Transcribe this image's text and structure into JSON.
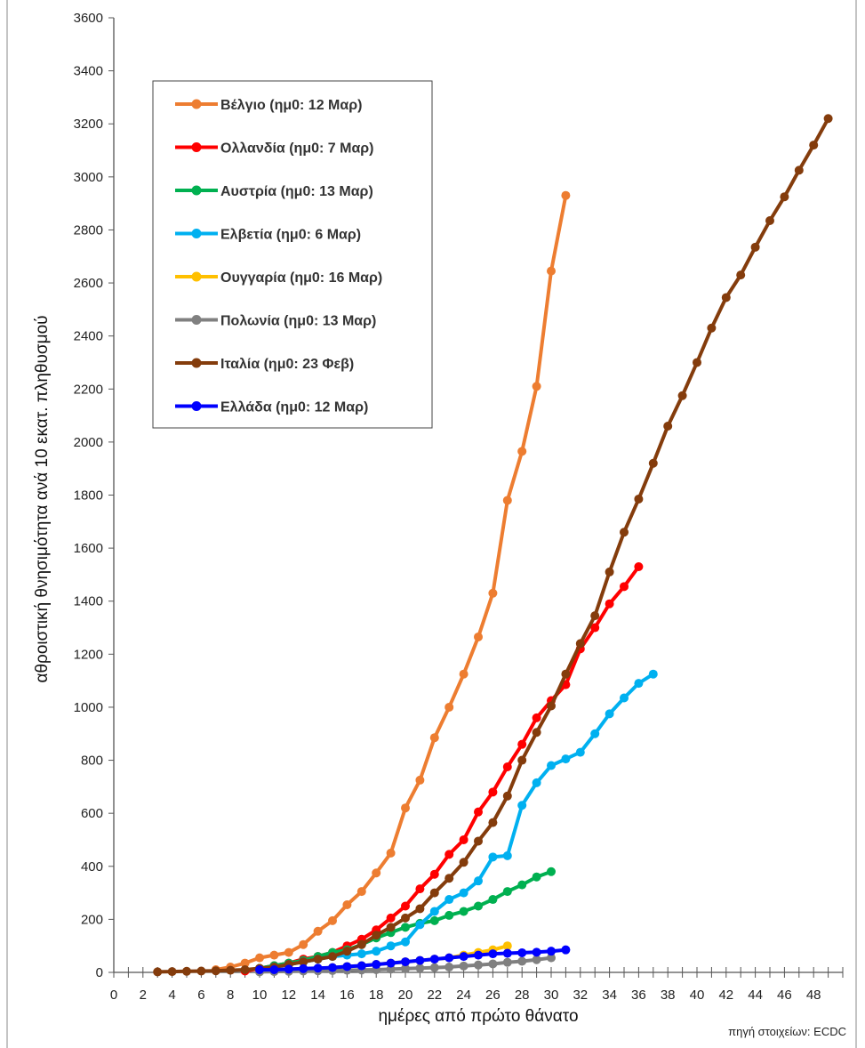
{
  "chart_data": {
    "type": "line",
    "xlabel": "ημέρες από πρώτο θάνατο",
    "ylabel": "αθροιστική θνησιμότητα ανά 10 εκατ. πληθυσμού",
    "source_note": "πηγή στοιχείων: ECDC",
    "xlim": [
      0,
      50
    ],
    "ylim": [
      0,
      3600
    ],
    "x_tick_labels": [
      "0",
      "2",
      "4",
      "6",
      "8",
      "10",
      "12",
      "14",
      "16",
      "18",
      "20",
      "22",
      "24",
      "26",
      "28",
      "30",
      "32",
      "34",
      "36",
      "38",
      "40",
      "42",
      "44",
      "46",
      "48"
    ],
    "y_tick_labels": [
      "0",
      "200",
      "400",
      "600",
      "800",
      "1000",
      "1200",
      "1400",
      "1600",
      "1800",
      "2000",
      "2200",
      "2400",
      "2600",
      "2800",
      "3000",
      "3200",
      "3400",
      "3600"
    ],
    "grid": false,
    "legend_position": "top-left",
    "series": [
      {
        "name": "Βέλγιο (ημ0: 12 Μαρ)",
        "color": "#ED7D31",
        "x": [
          7,
          8,
          9,
          10,
          11,
          12,
          13,
          14,
          15,
          16,
          17,
          18,
          19,
          20,
          21,
          22,
          23,
          24,
          25,
          26,
          27,
          28,
          29,
          30,
          31
        ],
        "y": [
          10,
          20,
          35,
          55,
          65,
          75,
          105,
          155,
          195,
          255,
          305,
          375,
          450,
          620,
          725,
          885,
          1000,
          1125,
          1265,
          1430,
          1780,
          1965,
          2210,
          2645,
          2930
        ]
      },
      {
        "name": "Ολλανδία (ημ0: 7 Μαρ)",
        "color": "#FF0000",
        "x": [
          9,
          10,
          11,
          12,
          13,
          14,
          15,
          16,
          17,
          18,
          19,
          20,
          21,
          22,
          23,
          24,
          25,
          26,
          27,
          28,
          29,
          30,
          31,
          32,
          33,
          34,
          35,
          36
        ],
        "y": [
          5,
          15,
          25,
          35,
          50,
          60,
          75,
          100,
          125,
          160,
          205,
          250,
          315,
          370,
          445,
          500,
          605,
          680,
          775,
          860,
          960,
          1025,
          1085,
          1220,
          1300,
          1390,
          1455,
          1530
        ]
      },
      {
        "name": "Αυστρία (ημ0: 13 Μαρ)",
        "color": "#00B050",
        "x": [
          10,
          11,
          12,
          13,
          14,
          15,
          16,
          17,
          18,
          19,
          20,
          21,
          22,
          23,
          24,
          25,
          26,
          27,
          28,
          29,
          30
        ],
        "y": [
          15,
          25,
          35,
          45,
          60,
          75,
          85,
          105,
          130,
          150,
          170,
          185,
          195,
          215,
          230,
          250,
          275,
          305,
          330,
          360,
          380
        ]
      },
      {
        "name": "Ελβετία (ημ0: 6 Μαρ)",
        "color": "#00B0F0",
        "x": [
          10,
          11,
          12,
          13,
          14,
          15,
          16,
          17,
          18,
          19,
          20,
          21,
          22,
          23,
          24,
          25,
          26,
          27,
          28,
          29,
          30,
          31,
          32,
          33,
          34,
          35,
          36,
          37
        ],
        "y": [
          10,
          20,
          30,
          40,
          50,
          60,
          65,
          70,
          80,
          100,
          115,
          180,
          230,
          275,
          300,
          345,
          435,
          440,
          630,
          715,
          780,
          805,
          830,
          900,
          975,
          1035,
          1090,
          1125
        ]
      },
      {
        "name": "Ουγγαρία (ημ0: 16 Μαρ)",
        "color": "#FFC000",
        "x": [
          10,
          11,
          12,
          13,
          14,
          15,
          16,
          17,
          18,
          19,
          20,
          21,
          22,
          23,
          24,
          25,
          26,
          27
        ],
        "y": [
          5,
          8,
          10,
          12,
          15,
          18,
          22,
          25,
          30,
          35,
          40,
          45,
          50,
          55,
          65,
          75,
          85,
          100
        ]
      },
      {
        "name": "Πολωνία (ημ0: 13 Μαρ)",
        "color": "#808080",
        "x": [
          10,
          11,
          12,
          13,
          14,
          15,
          16,
          17,
          18,
          19,
          20,
          21,
          22,
          23,
          24,
          25,
          26,
          27,
          28,
          29,
          30
        ],
        "y": [
          2,
          3,
          4,
          5,
          6,
          7,
          8,
          9,
          10,
          12,
          14,
          16,
          18,
          20,
          24,
          28,
          32,
          38,
          42,
          48,
          55
        ]
      },
      {
        "name": "Ιταλία (ημ0: 23 Φεβ)",
        "color": "#843C0C",
        "x": [
          3,
          4,
          5,
          6,
          7,
          8,
          9,
          10,
          11,
          12,
          13,
          14,
          15,
          16,
          17,
          18,
          19,
          20,
          21,
          22,
          23,
          24,
          25,
          26,
          27,
          28,
          29,
          30,
          31,
          32,
          33,
          34,
          35,
          36,
          37,
          38,
          39,
          40,
          41,
          42,
          43,
          44,
          45,
          46,
          47,
          48,
          49
        ],
        "y": [
          2,
          3,
          4,
          5,
          6,
          8,
          10,
          15,
          20,
          30,
          40,
          50,
          60,
          80,
          105,
          140,
          170,
          205,
          240,
          300,
          355,
          415,
          495,
          565,
          665,
          800,
          905,
          1005,
          1125,
          1240,
          1345,
          1510,
          1660,
          1785,
          1920,
          2060,
          2175,
          2300,
          2430,
          2545,
          2630,
          2735,
          2835,
          2925,
          3025,
          3120,
          3220
        ]
      },
      {
        "name": "Ελλάδα (ημ0: 12 Μαρ)",
        "color": "#0000FF",
        "x": [
          10,
          11,
          12,
          13,
          14,
          15,
          16,
          17,
          18,
          19,
          20,
          21,
          22,
          23,
          24,
          25,
          26,
          27,
          28,
          29,
          30,
          31
        ],
        "y": [
          10,
          10,
          12,
          14,
          16,
          18,
          22,
          25,
          30,
          35,
          40,
          45,
          50,
          55,
          60,
          65,
          70,
          72,
          74,
          76,
          80,
          85
        ]
      }
    ]
  }
}
